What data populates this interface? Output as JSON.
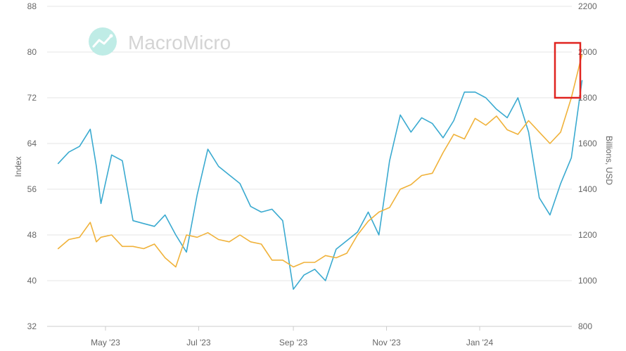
{
  "watermark": {
    "text": "MacroMicro"
  },
  "chart_data": {
    "type": "line",
    "title": "",
    "xlabel": "",
    "x_ticks": [
      "May '23",
      "Jul '23",
      "Sep '23",
      "Nov '23",
      "Jan '24"
    ],
    "left_axis": {
      "label": "Index",
      "range": [
        32,
        88
      ],
      "ticks": [
        32,
        40,
        48,
        56,
        64,
        72,
        80,
        88
      ]
    },
    "right_axis": {
      "label": "Billions, USD",
      "range": [
        800,
        2200
      ],
      "ticks": [
        800,
        1000,
        1200,
        1400,
        1600,
        1800,
        2000,
        2200
      ]
    },
    "grid": true,
    "legend": "none",
    "highlight_box": {
      "around": "latest values of both series",
      "color": "#e0231f"
    },
    "series": [
      {
        "axis": "left",
        "color": "#3aaad0",
        "x": [
          "2023-03-31",
          "2023-04-07",
          "2023-04-14",
          "2023-04-21",
          "2023-04-25",
          "2023-04-28",
          "2023-05-05",
          "2023-05-12",
          "2023-05-19",
          "2023-05-26",
          "2023-06-02",
          "2023-06-09",
          "2023-06-16",
          "2023-06-23",
          "2023-06-30",
          "2023-07-07",
          "2023-07-14",
          "2023-07-21",
          "2023-07-28",
          "2023-08-04",
          "2023-08-11",
          "2023-08-18",
          "2023-08-25",
          "2023-09-01",
          "2023-09-08",
          "2023-09-15",
          "2023-09-22",
          "2023-09-29",
          "2023-10-06",
          "2023-10-13",
          "2023-10-20",
          "2023-10-27",
          "2023-11-03",
          "2023-11-10",
          "2023-11-17",
          "2023-11-24",
          "2023-12-01",
          "2023-12-08",
          "2023-12-15",
          "2023-12-22",
          "2023-12-29",
          "2024-01-05",
          "2024-01-12",
          "2024-01-19",
          "2024-01-26",
          "2024-02-02",
          "2024-02-09",
          "2024-02-16",
          "2024-02-23",
          "2024-03-01",
          "2024-03-08"
        ],
        "values": [
          60.5,
          62.5,
          63.5,
          66.5,
          60,
          53.5,
          62,
          61,
          50.5,
          50,
          49.5,
          51.5,
          48,
          45,
          55,
          63,
          60,
          58.5,
          57,
          53,
          52,
          52.5,
          50.5,
          38.5,
          41,
          42,
          40,
          45.5,
          47,
          48.5,
          52,
          48,
          61,
          69,
          66,
          68.5,
          67.5,
          65,
          68,
          73,
          73,
          72,
          70,
          68.5,
          72,
          66,
          54.5,
          51.5,
          57,
          61.5,
          75
        ]
      },
      {
        "axis": "right",
        "color": "#f0b23a",
        "x": [
          "2023-03-31",
          "2023-04-07",
          "2023-04-14",
          "2023-04-21",
          "2023-04-25",
          "2023-04-28",
          "2023-05-05",
          "2023-05-12",
          "2023-05-19",
          "2023-05-26",
          "2023-06-02",
          "2023-06-09",
          "2023-06-16",
          "2023-06-23",
          "2023-06-30",
          "2023-07-07",
          "2023-07-14",
          "2023-07-21",
          "2023-07-28",
          "2023-08-04",
          "2023-08-11",
          "2023-08-18",
          "2023-08-25",
          "2023-09-01",
          "2023-09-08",
          "2023-09-15",
          "2023-09-22",
          "2023-09-29",
          "2023-10-06",
          "2023-10-13",
          "2023-10-20",
          "2023-10-27",
          "2023-11-03",
          "2023-11-10",
          "2023-11-17",
          "2023-11-24",
          "2023-12-01",
          "2023-12-08",
          "2023-12-15",
          "2023-12-22",
          "2023-12-29",
          "2024-01-05",
          "2024-01-12",
          "2024-01-19",
          "2024-01-26",
          "2024-02-02",
          "2024-02-09",
          "2024-02-16",
          "2024-02-23",
          "2024-03-01",
          "2024-03-08"
        ],
        "values": [
          1140,
          1180,
          1190,
          1255,
          1170,
          1190,
          1200,
          1150,
          1150,
          1140,
          1160,
          1100,
          1060,
          1200,
          1190,
          1210,
          1180,
          1170,
          1200,
          1170,
          1160,
          1090,
          1090,
          1060,
          1080,
          1080,
          1110,
          1100,
          1120,
          1200,
          1260,
          1300,
          1320,
          1400,
          1420,
          1460,
          1470,
          1560,
          1640,
          1620,
          1710,
          1680,
          1720,
          1660,
          1640,
          1700,
          1650,
          1600,
          1650,
          1800,
          1990
        ]
      }
    ]
  }
}
